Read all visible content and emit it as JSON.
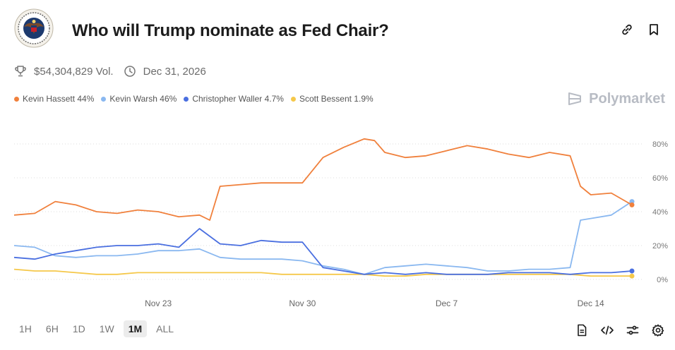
{
  "market": {
    "title": "Who will Trump nominate as Fed Chair?",
    "volume": "$54,304,829 Vol.",
    "end_date": "Dec 31, 2026",
    "brand": "Polymarket"
  },
  "icons": {
    "seal": "federal-reserve-seal-icon",
    "link": "link-icon",
    "bookmark": "bookmark-icon",
    "trophy": "trophy-icon",
    "clock": "clock-icon",
    "brand": "polymarket-logo-icon",
    "document": "document-icon",
    "embed": "code-embed-icon",
    "settings_sliders": "sliders-icon",
    "settings": "gear-icon"
  },
  "timeframes": [
    {
      "label": "1H"
    },
    {
      "label": "6H"
    },
    {
      "label": "1D"
    },
    {
      "label": "1W"
    },
    {
      "label": "1M",
      "active": true
    },
    {
      "label": "ALL"
    }
  ],
  "chart_data": {
    "type": "line",
    "x_ticks": [
      "Nov 23",
      "Nov 30",
      "Dec 7",
      "Dec 14"
    ],
    "y_ticks": [
      "0%",
      "20%",
      "40%",
      "60%",
      "80%"
    ],
    "ylim": [
      0,
      90
    ],
    "y_axis_side": "right",
    "grid": "horizontal dotted",
    "legend_position": "top-left",
    "series": [
      {
        "name": "Kevin Hassett",
        "label": "Kevin Hassett 44%",
        "color": "#f0803c",
        "x": [
          "Nov 16",
          "Nov 17",
          "Nov 18",
          "Nov 19",
          "Nov 20",
          "Nov 21",
          "Nov 22",
          "Nov 23",
          "Nov 24",
          "Nov 25",
          "Nov 25.5",
          "Nov 26",
          "Nov 27",
          "Nov 28",
          "Nov 29",
          "Nov 30",
          "Dec 1",
          "Dec 2",
          "Dec 3",
          "Dec 3.5",
          "Dec 4",
          "Dec 5",
          "Dec 6",
          "Dec 7",
          "Dec 8",
          "Dec 9",
          "Dec 10",
          "Dec 11",
          "Dec 12",
          "Dec 13",
          "Dec 13.5",
          "Dec 14",
          "Dec 15",
          "Dec 16"
        ],
        "values": [
          38,
          39,
          46,
          44,
          40,
          39,
          41,
          40,
          37,
          38,
          35,
          55,
          56,
          57,
          57,
          57,
          72,
          78,
          83,
          82,
          75,
          72,
          73,
          76,
          79,
          77,
          74,
          72,
          75,
          73,
          55,
          50,
          51,
          44
        ]
      },
      {
        "name": "Kevin Warsh",
        "label": "Kevin Warsh 46%",
        "color": "#8ab8f0",
        "x": [
          "Nov 16",
          "Nov 17",
          "Nov 18",
          "Nov 19",
          "Nov 20",
          "Nov 21",
          "Nov 22",
          "Nov 23",
          "Nov 24",
          "Nov 25",
          "Nov 26",
          "Nov 27",
          "Nov 28",
          "Nov 29",
          "Nov 30",
          "Dec 1",
          "Dec 2",
          "Dec 3",
          "Dec 4",
          "Dec 5",
          "Dec 6",
          "Dec 7",
          "Dec 8",
          "Dec 9",
          "Dec 10",
          "Dec 11",
          "Dec 12",
          "Dec 13",
          "Dec 13.5",
          "Dec 14",
          "Dec 15",
          "Dec 16"
        ],
        "values": [
          20,
          19,
          14,
          13,
          14,
          14,
          15,
          17,
          17,
          18,
          13,
          12,
          12,
          12,
          11,
          8,
          6,
          3,
          7,
          8,
          9,
          8,
          7,
          5,
          5,
          6,
          6,
          7,
          35,
          36,
          38,
          46
        ]
      },
      {
        "name": "Christopher Waller",
        "label": "Christopher Waller 4.7%",
        "color": "#4a6fe0",
        "x": [
          "Nov 16",
          "Nov 17",
          "Nov 18",
          "Nov 19",
          "Nov 20",
          "Nov 21",
          "Nov 22",
          "Nov 23",
          "Nov 24",
          "Nov 25",
          "Nov 26",
          "Nov 27",
          "Nov 28",
          "Nov 29",
          "Nov 30",
          "Dec 1",
          "Dec 2",
          "Dec 3",
          "Dec 4",
          "Dec 5",
          "Dec 6",
          "Dec 7",
          "Dec 8",
          "Dec 9",
          "Dec 10",
          "Dec 11",
          "Dec 12",
          "Dec 13",
          "Dec 14",
          "Dec 15",
          "Dec 16"
        ],
        "values": [
          13,
          12,
          15,
          17,
          19,
          20,
          20,
          21,
          19,
          30,
          21,
          20,
          23,
          22,
          22,
          7,
          5,
          3,
          4,
          3,
          4,
          3,
          3,
          3,
          4,
          4,
          4,
          3,
          4,
          4,
          5
        ]
      },
      {
        "name": "Scott Bessent",
        "label": "Scott Bessent 1.9%",
        "color": "#f5c84a",
        "x": [
          "Nov 16",
          "Nov 17",
          "Nov 18",
          "Nov 19",
          "Nov 20",
          "Nov 21",
          "Nov 22",
          "Nov 23",
          "Nov 24",
          "Nov 25",
          "Nov 26",
          "Nov 27",
          "Nov 28",
          "Nov 29",
          "Nov 30",
          "Dec 1",
          "Dec 2",
          "Dec 3",
          "Dec 4",
          "Dec 5",
          "Dec 6",
          "Dec 7",
          "Dec 8",
          "Dec 9",
          "Dec 10",
          "Dec 11",
          "Dec 12",
          "Dec 13",
          "Dec 14",
          "Dec 15",
          "Dec 16"
        ],
        "values": [
          6,
          5,
          5,
          4,
          3,
          3,
          4,
          4,
          4,
          4,
          4,
          4,
          4,
          3,
          3,
          3,
          3,
          3,
          2,
          2,
          3,
          3,
          3,
          3,
          3,
          3,
          3,
          3,
          2,
          2,
          2
        ]
      }
    ]
  }
}
